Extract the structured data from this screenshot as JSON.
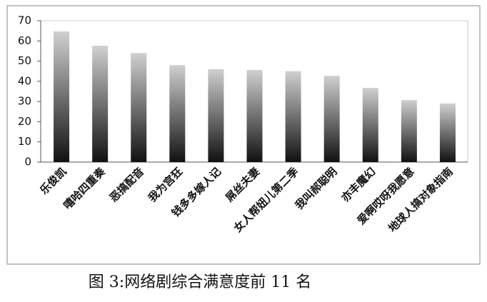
{
  "chart_data": {
    "type": "bar",
    "caption": "图 3:网络剧综合满意度前 11 名",
    "categories": [
      "乐俊凯",
      "嘻哈四重奏",
      "恶搞配音",
      "我为宫狂",
      "钱多多嫁人记",
      "屌丝夫妻",
      "女人帮妞儿第二季",
      "我叫郝聪明",
      "亦丰魔幻",
      "爱啊哎呀我愿意",
      "地球人搞对象指南"
    ],
    "values": [
      64.7,
      57.6,
      54,
      48,
      46,
      45.6,
      45,
      42.7,
      36.7,
      30.7,
      29
    ],
    "color": "#111111",
    "ylim": [
      0,
      70
    ],
    "yticks": [
      0,
      10,
      20,
      30,
      40,
      50,
      60,
      70
    ],
    "grid": false
  }
}
